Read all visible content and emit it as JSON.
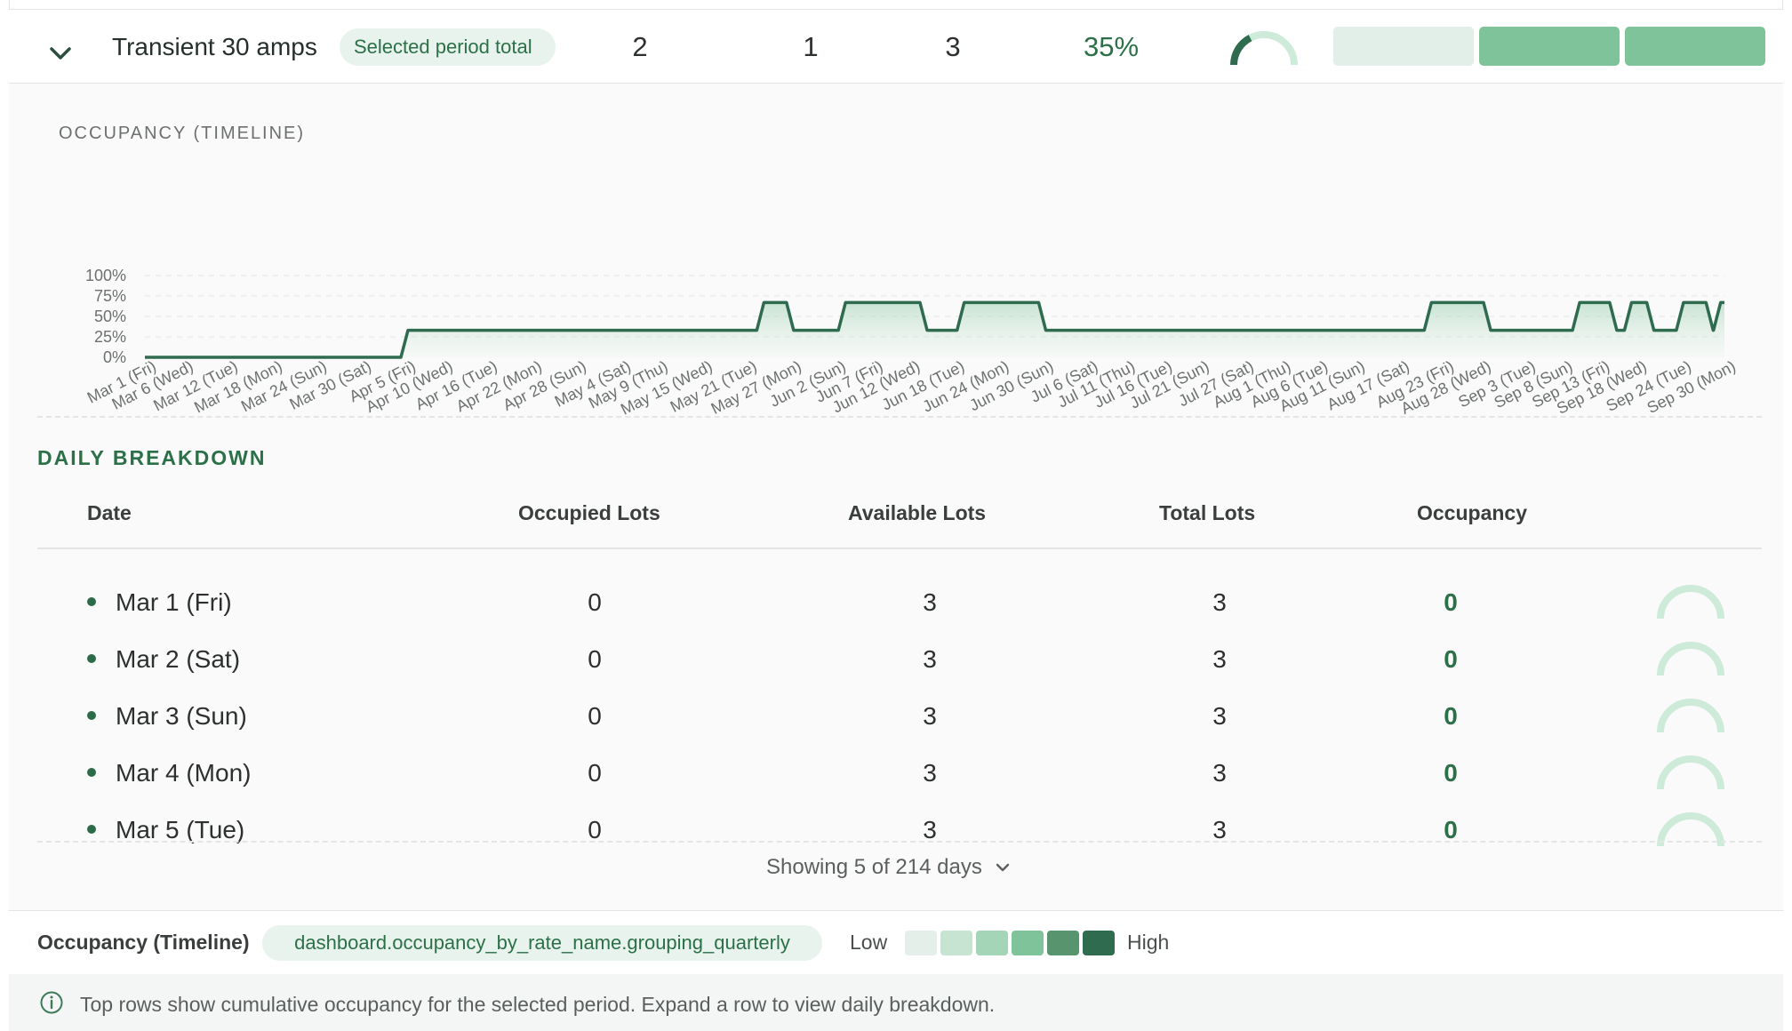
{
  "summary": {
    "title": "Transient 30 amps",
    "period_pill": "Selected period total",
    "occupied": "2",
    "available": "1",
    "total": "3",
    "occupancy": "35%",
    "occupancy_fraction": 0.35,
    "heat_cells": [
      "#e2eee8",
      "#7fc39b",
      "#7fc39b"
    ]
  },
  "timeline": {
    "section_label": "OCCUPANCY (TIMELINE)",
    "y_ticks": [
      "100%",
      "75%",
      "50%",
      "25%",
      "0%"
    ],
    "x_labels": [
      "Mar 1 (Fri)",
      "Mar 6 (Wed)",
      "Mar 12 (Tue)",
      "Mar 18 (Mon)",
      "Mar 24 (Sun)",
      "Mar 30 (Sat)",
      "Apr 5 (Fri)",
      "Apr 10 (Wed)",
      "Apr 16 (Tue)",
      "Apr 22 (Mon)",
      "Apr 28 (Sun)",
      "May 4 (Sat)",
      "May 9 (Thu)",
      "May 15 (Wed)",
      "May 21 (Tue)",
      "May 27 (Mon)",
      "Jun 2 (Sun)",
      "Jun 7 (Fri)",
      "Jun 12 (Wed)",
      "Jun 18 (Tue)",
      "Jun 24 (Mon)",
      "Jun 30 (Sun)",
      "Jul 6 (Sat)",
      "Jul 11 (Thu)",
      "Jul 16 (Tue)",
      "Jul 21 (Sun)",
      "Jul 27 (Sat)",
      "Aug 1 (Thu)",
      "Aug 6 (Tue)",
      "Aug 11 (Sun)",
      "Aug 17 (Sat)",
      "Aug 23 (Fri)",
      "Aug 28 (Wed)",
      "Sep 3 (Tue)",
      "Sep 8 (Sun)",
      "Sep 13 (Fri)",
      "Sep 18 (Wed)",
      "Sep 24 (Tue)",
      "Sep 30 (Mon)"
    ]
  },
  "chart_data": {
    "type": "area",
    "x_range": [
      "Mar 1 (Fri)",
      "Sep 30 (Mon)"
    ],
    "y_range": [
      0,
      100
    ],
    "y_unit": "%",
    "grid": true,
    "segments": [
      {
        "from": "Mar 1 (Fri)",
        "to": "Apr 5 (Fri)",
        "value": 0
      },
      {
        "from": "Apr 5 (Fri)",
        "to": "May 23 (Thu)",
        "value": 33
      },
      {
        "from": "May 23 (Thu)",
        "to": "May 27 (Mon)",
        "value": 67
      },
      {
        "from": "May 27 (Mon)",
        "to": "Jun 3 (Mon)",
        "value": 33
      },
      {
        "from": "Jun 3 (Mon)",
        "to": "Jun 14 (Fri)",
        "value": 67
      },
      {
        "from": "Jun 14 (Fri)",
        "to": "Jun 19 (Wed)",
        "value": 33
      },
      {
        "from": "Jun 19 (Wed)",
        "to": "Jun 30 (Sun)",
        "value": 67
      },
      {
        "from": "Jun 30 (Sun)",
        "to": "Aug 21 (Wed)",
        "value": 33
      },
      {
        "from": "Aug 21 (Wed)",
        "to": "Aug 29 (Thu)",
        "value": 67
      },
      {
        "from": "Aug 29 (Thu)",
        "to": "Sep 10 (Tue)",
        "value": 33
      },
      {
        "from": "Sep 10 (Tue)",
        "to": "Sep 15 (Sun)",
        "value": 67
      },
      {
        "from": "Sep 15 (Sun)",
        "to": "Sep 17 (Tue)",
        "value": 33
      },
      {
        "from": "Sep 17 (Tue)",
        "to": "Sep 20 (Fri)",
        "value": 67
      },
      {
        "from": "Sep 20 (Fri)",
        "to": "Sep 24 (Tue)",
        "value": 33
      },
      {
        "from": "Sep 24 (Tue)",
        "to": "Sep 28 (Sat)",
        "value": 67
      },
      {
        "from": "Sep 28 (Sat)",
        "to": "Sep 29 (Sun)",
        "value": 33
      },
      {
        "from": "Sep 29 (Sun)",
        "to": "Sep 30 (Mon)",
        "value": 67
      }
    ]
  },
  "daily": {
    "section_label": "DAILY BREAKDOWN",
    "columns": {
      "date": "Date",
      "occupied": "Occupied Lots",
      "available": "Available Lots",
      "total": "Total Lots",
      "occupancy": "Occupancy"
    },
    "rows": [
      {
        "date": "Mar 1 (Fri)",
        "occupied": "0",
        "available": "3",
        "total": "3",
        "occupancy": "0"
      },
      {
        "date": "Mar 2 (Sat)",
        "occupied": "0",
        "available": "3",
        "total": "3",
        "occupancy": "0"
      },
      {
        "date": "Mar 3 (Sun)",
        "occupied": "0",
        "available": "3",
        "total": "3",
        "occupancy": "0"
      },
      {
        "date": "Mar 4 (Mon)",
        "occupied": "0",
        "available": "3",
        "total": "3",
        "occupancy": "0"
      },
      {
        "date": "Mar 5 (Tue)",
        "occupied": "0",
        "available": "3",
        "total": "3",
        "occupancy": "0"
      }
    ],
    "showing_label": "Showing 5 of 214 days"
  },
  "legend": {
    "title": "Occupancy (Timeline)",
    "key_pill": "dashboard.occupancy_by_rate_name.grouping_quarterly",
    "low": "Low",
    "high": "High",
    "swatches": [
      "#e3efe8",
      "#c7e3d2",
      "#a3d5b6",
      "#7fc39b",
      "#58956f",
      "#2f6b4f"
    ]
  },
  "info": {
    "text": "Top rows show cumulative occupancy for the selected period. Expand a row to view daily breakdown."
  },
  "colors": {
    "accent": "#2c7048",
    "line": "#2f6b4f",
    "gauge_track": "#cdebd8"
  }
}
